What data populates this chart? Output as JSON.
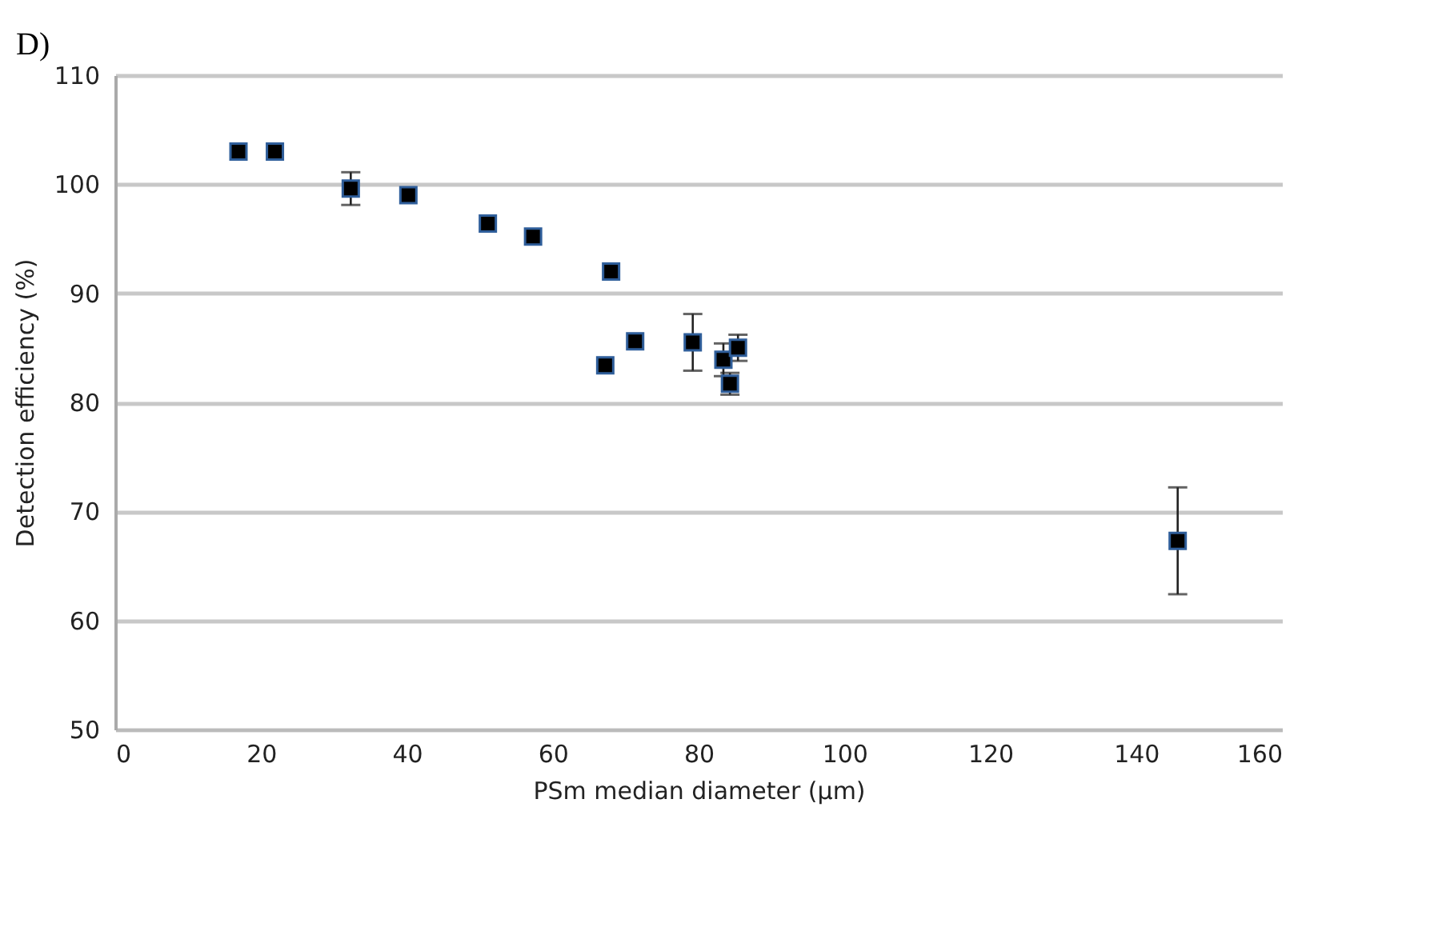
{
  "chart_data": {
    "type": "scatter",
    "xlabel": "PSm median diameter (µm)",
    "ylabel": "Detection efficiency (%)",
    "annotations": [
      "D)"
    ],
    "x": [
      16.9,
      21.9,
      32.3,
      40.2,
      51.1,
      57.3,
      68.0,
      67.2,
      71.3,
      79.2,
      83.4,
      84.3,
      85.4,
      145.7
    ],
    "series": [
      {
        "color": "#000000",
        "values": [
          103.0,
          103.0,
          99.6,
          99.0,
          96.4,
          95.2,
          92.0,
          83.4,
          85.6,
          85.5,
          83.9,
          81.7,
          85.0,
          67.3
        ],
        "errors": [
          null,
          null,
          1.5,
          null,
          null,
          null,
          null,
          null,
          null,
          2.6,
          1.5,
          1.0,
          1.2,
          4.9
        ]
      }
    ],
    "xlim": [
      0,
      160
    ],
    "xticks": [
      0,
      20,
      40,
      60,
      80,
      100,
      120,
      140,
      160
    ],
    "ylim": [
      50,
      110
    ],
    "yticks": [
      50,
      60,
      70,
      80,
      90,
      100,
      110
    ],
    "grid": "y",
    "marker": "square"
  }
}
